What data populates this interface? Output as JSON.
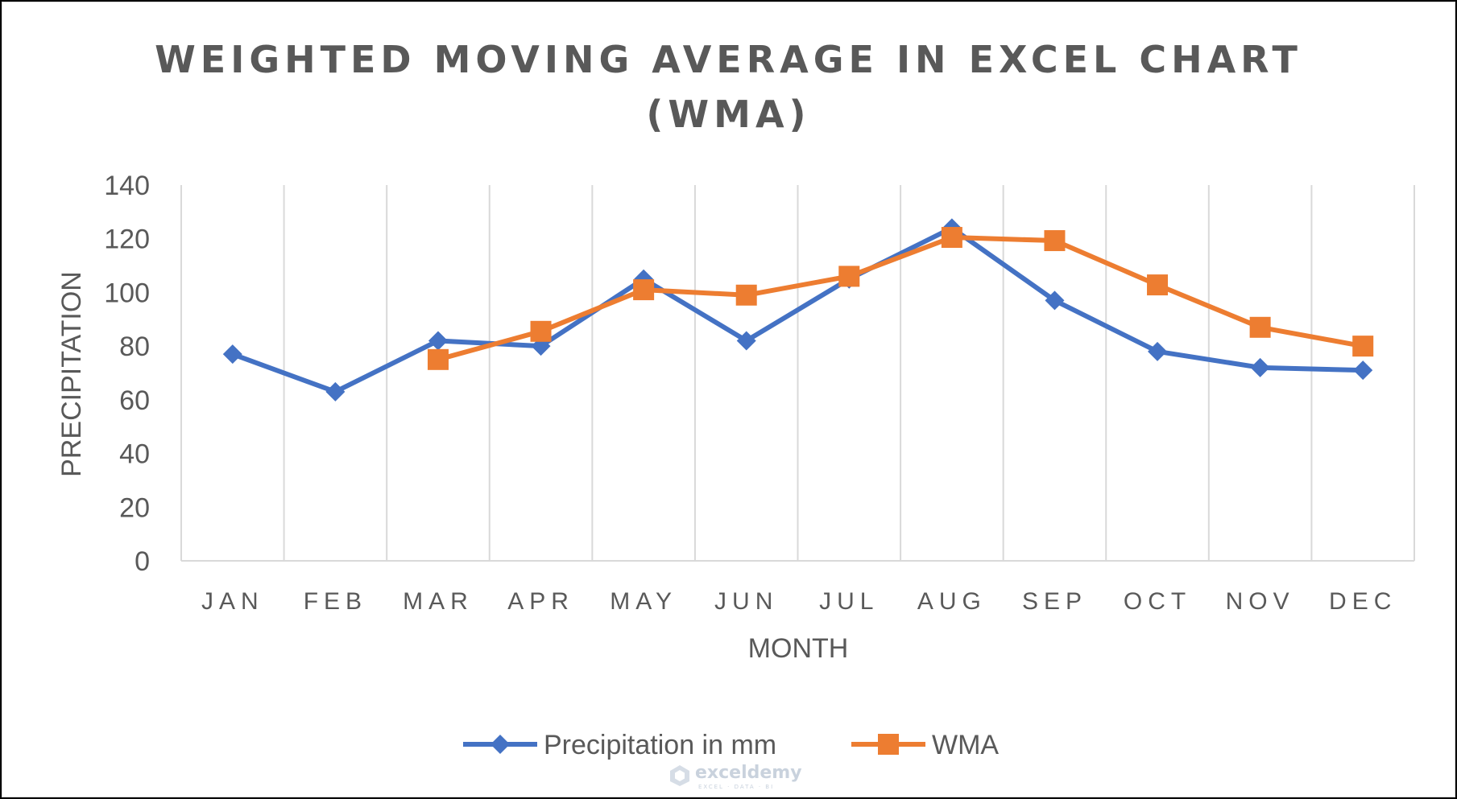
{
  "chart_data": {
    "type": "line",
    "title_lines": [
      "WEIGHTED MOVING AVERAGE IN EXCEL CHART",
      "(WMA)"
    ],
    "xlabel": "MONTH",
    "ylabel": "PRECIPITATION",
    "categories": [
      "JAN",
      "FEB",
      "MAR",
      "APR",
      "MAY",
      "JUN",
      "JUL",
      "AUG",
      "SEP",
      "OCT",
      "NOV",
      "DEC"
    ],
    "ylim": [
      0,
      140
    ],
    "yticks": [
      0,
      20,
      40,
      60,
      80,
      100,
      120,
      140
    ],
    "grid": "vertical",
    "legend_position": "bottom",
    "series": [
      {
        "name": "Precipitation in mm",
        "color": "#4472c4",
        "marker": "diamond",
        "values": [
          77,
          63,
          82,
          80,
          105,
          82,
          105,
          124,
          97,
          78,
          72,
          71
        ]
      },
      {
        "name": "WMA",
        "color": "#ed7d31",
        "marker": "square",
        "values": [
          null,
          null,
          75,
          85.5,
          101,
          99,
          106,
          120.5,
          119.3,
          102.8,
          87,
          80
        ]
      }
    ]
  },
  "watermark": {
    "name": "exceldemy",
    "tagline": "EXCEL · DATA · BI"
  }
}
